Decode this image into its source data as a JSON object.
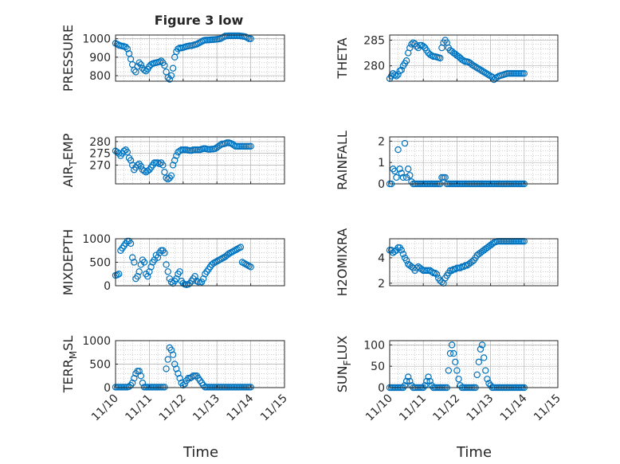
{
  "figure": {
    "title": "Figure 3 low",
    "bg": "#ffffff"
  },
  "style": {
    "marker": "#0072BD",
    "axis": "#262626",
    "grid": "#b0b0b0"
  },
  "xaxis": {
    "label": "Time",
    "ticks": [
      "11/10",
      "11/11",
      "11/12",
      "11/13",
      "11/14",
      "11/15"
    ],
    "range": [
      0,
      5
    ]
  },
  "chart_data": [
    {
      "type": "scatter",
      "title": "Figure 3 low",
      "ylabel": "PRESSURE",
      "ylim": [
        770,
        1020
      ],
      "yticks": [
        800,
        900,
        1000
      ],
      "grid": true,
      "x": [
        0.0,
        0.05,
        0.1,
        0.15,
        0.2,
        0.25,
        0.3,
        0.35,
        0.4,
        0.45,
        0.5,
        0.55,
        0.6,
        0.65,
        0.7,
        0.75,
        0.8,
        0.85,
        0.9,
        0.95,
        1.0,
        1.05,
        1.1,
        1.15,
        1.2,
        1.25,
        1.3,
        1.35,
        1.4,
        1.45,
        1.5,
        1.55,
        1.6,
        1.65,
        1.7,
        1.75,
        1.8,
        1.85,
        1.9,
        1.95,
        2.0,
        2.05,
        2.1,
        2.15,
        2.2,
        2.25,
        2.3,
        2.35,
        2.4,
        2.45,
        2.5,
        2.55,
        2.6,
        2.65,
        2.7,
        2.75,
        2.8,
        2.85,
        2.9,
        2.95,
        3.0,
        3.05,
        3.1,
        3.15,
        3.2,
        3.25,
        3.3,
        3.35,
        3.4,
        3.45,
        3.5,
        3.55,
        3.6,
        3.65,
        3.7,
        3.75,
        3.8,
        3.85,
        3.9,
        3.95,
        4.0
      ],
      "y": [
        975,
        970,
        965,
        962,
        960,
        958,
        955,
        945,
        920,
        890,
        860,
        830,
        820,
        850,
        870,
        860,
        840,
        830,
        825,
        835,
        850,
        860,
        865,
        868,
        870,
        872,
        875,
        880,
        870,
        855,
        820,
        790,
        780,
        800,
        840,
        900,
        930,
        945,
        950,
        950,
        952,
        955,
        958,
        960,
        962,
        962,
        965,
        968,
        970,
        975,
        980,
        985,
        990,
        992,
        993,
        993,
        994,
        995,
        995,
        996,
        997,
        998,
        1000,
        1005,
        1010,
        1015,
        1015,
        1016,
        1016,
        1016,
        1016,
        1016,
        1016,
        1016,
        1015,
        1014,
        1012,
        1010,
        1005,
        1000,
        1000
      ]
    },
    {
      "type": "scatter",
      "ylabel": "THETA",
      "ylim": [
        277,
        286
      ],
      "yticks": [
        280,
        285
      ],
      "grid": true,
      "x": [
        0.0,
        0.05,
        0.1,
        0.15,
        0.2,
        0.25,
        0.3,
        0.35,
        0.4,
        0.45,
        0.5,
        0.55,
        0.6,
        0.65,
        0.7,
        0.75,
        0.8,
        0.85,
        0.9,
        0.95,
        1.0,
        1.05,
        1.1,
        1.15,
        1.2,
        1.25,
        1.3,
        1.35,
        1.4,
        1.45,
        1.5,
        1.55,
        1.6,
        1.65,
        1.7,
        1.75,
        1.8,
        1.85,
        1.9,
        1.95,
        2.0,
        2.05,
        2.1,
        2.15,
        2.2,
        2.25,
        2.3,
        2.35,
        2.4,
        2.45,
        2.5,
        2.55,
        2.6,
        2.65,
        2.7,
        2.75,
        2.8,
        2.85,
        2.9,
        2.95,
        3.0,
        3.05,
        3.1,
        3.15,
        3.2,
        3.25,
        3.3,
        3.35,
        3.4,
        3.45,
        3.5,
        3.55,
        3.6,
        3.65,
        3.7,
        3.75,
        3.8,
        3.85,
        3.9,
        3.95,
        4.0
      ],
      "y": [
        277.5,
        278,
        278.5,
        278.2,
        278,
        278.3,
        279,
        279.2,
        280,
        280.5,
        281,
        282.5,
        283.5,
        284.2,
        284.5,
        284.3,
        283.8,
        283.5,
        284,
        284,
        283.8,
        283.5,
        283,
        282.5,
        282.2,
        282,
        281.8,
        281.8,
        281.7,
        281.6,
        281.5,
        283.5,
        284.5,
        285,
        284.5,
        283.5,
        283,
        282.8,
        282.5,
        282.3,
        282,
        281.8,
        281.5,
        281.2,
        281,
        280.8,
        280.8,
        280.7,
        280.5,
        280.2,
        280,
        279.8,
        279.6,
        279.4,
        279.2,
        279,
        278.8,
        278.6,
        278.4,
        278.2,
        278,
        277.8,
        277.3,
        277.6,
        277.8,
        278,
        278.1,
        278.2,
        278.3,
        278.4,
        278.5,
        278.5,
        278.5,
        278.5,
        278.5,
        278.5,
        278.5,
        278.5,
        278.5,
        278.5,
        278.5
      ]
    },
    {
      "type": "scatter",
      "ylabel": "AIR_TEMP",
      "ylim": [
        262,
        282
      ],
      "yticks": [
        270,
        275,
        280
      ],
      "grid": true,
      "x": [
        0.0,
        0.05,
        0.1,
        0.15,
        0.2,
        0.25,
        0.3,
        0.35,
        0.4,
        0.45,
        0.5,
        0.55,
        0.6,
        0.65,
        0.7,
        0.75,
        0.8,
        0.85,
        0.9,
        0.95,
        1.0,
        1.05,
        1.1,
        1.15,
        1.2,
        1.25,
        1.3,
        1.35,
        1.4,
        1.45,
        1.5,
        1.55,
        1.6,
        1.65,
        1.7,
        1.75,
        1.8,
        1.85,
        1.9,
        1.95,
        2.0,
        2.05,
        2.1,
        2.15,
        2.2,
        2.25,
        2.3,
        2.35,
        2.4,
        2.45,
        2.5,
        2.55,
        2.6,
        2.65,
        2.7,
        2.75,
        2.8,
        2.85,
        2.9,
        2.95,
        3.0,
        3.05,
        3.1,
        3.15,
        3.2,
        3.25,
        3.3,
        3.35,
        3.4,
        3.45,
        3.5,
        3.55,
        3.6,
        3.65,
        3.7,
        3.75,
        3.8,
        3.85,
        3.9,
        3.95,
        4.0
      ],
      "y": [
        276,
        275.5,
        275,
        274,
        275,
        276,
        276.5,
        275.5,
        273,
        272,
        270,
        268,
        269,
        270,
        270.5,
        269.5,
        268,
        267.5,
        267,
        267.5,
        268,
        269,
        270,
        271,
        271,
        271,
        270.5,
        271,
        270,
        267,
        264.5,
        264,
        264.5,
        265.5,
        270,
        272,
        274,
        275.5,
        276,
        276.5,
        276.5,
        276.5,
        276.5,
        276.3,
        276.2,
        276.2,
        276.5,
        276.5,
        276.5,
        276.5,
        276.5,
        276.8,
        277,
        277,
        276.8,
        276.7,
        276.7,
        276.8,
        276.8,
        277,
        277.5,
        278,
        278.5,
        279,
        279,
        279.2,
        279.5,
        279.5,
        279.3,
        279,
        278.5,
        278,
        278,
        278,
        278,
        278,
        278,
        278,
        278,
        278,
        278
      ]
    },
    {
      "type": "scatter",
      "ylabel": "RAINFALL",
      "ylim": [
        0,
        2.2
      ],
      "yticks": [
        0,
        1,
        2
      ],
      "grid": true,
      "x": [
        0.0,
        0.05,
        0.1,
        0.15,
        0.2,
        0.25,
        0.3,
        0.35,
        0.4,
        0.45,
        0.5,
        0.55,
        0.6,
        0.65,
        0.7,
        0.75,
        0.8,
        0.85,
        0.9,
        0.95,
        1.0,
        1.05,
        1.1,
        1.15,
        1.2,
        1.25,
        1.3,
        1.35,
        1.4,
        1.45,
        1.5,
        1.55,
        1.6,
        1.65,
        1.7,
        1.75,
        1.8,
        1.85,
        1.9,
        1.95,
        2.0,
        2.05,
        2.1,
        2.15,
        2.2,
        2.25,
        2.3,
        2.35,
        2.4,
        2.45,
        2.5,
        2.55,
        2.6,
        2.65,
        2.7,
        2.75,
        2.8,
        2.85,
        2.9,
        2.95,
        3.0,
        3.05,
        3.1,
        3.15,
        3.2,
        3.25,
        3.3,
        3.35,
        3.4,
        3.45,
        3.5,
        3.55,
        3.6,
        3.65,
        3.7,
        3.75,
        3.8,
        3.85,
        3.9,
        3.95,
        4.0
      ],
      "y": [
        0,
        0,
        0.7,
        0.6,
        0.3,
        1.6,
        0.7,
        0.5,
        0.3,
        1.9,
        0.3,
        0.7,
        0.4,
        0.1,
        0,
        0,
        0,
        0,
        0,
        0,
        0,
        0,
        0,
        0,
        0,
        0,
        0,
        0,
        0,
        0,
        0,
        0.3,
        0.3,
        0.3,
        0,
        0,
        0,
        0,
        0,
        0,
        0,
        0,
        0,
        0,
        0,
        0,
        0,
        0,
        0,
        0,
        0,
        0,
        0,
        0,
        0,
        0,
        0,
        0,
        0,
        0,
        0,
        0,
        0,
        0,
        0,
        0,
        0,
        0,
        0,
        0,
        0,
        0,
        0,
        0,
        0,
        0,
        0,
        0,
        0,
        0,
        0
      ]
    },
    {
      "type": "scatter",
      "ylabel": "MIXDEPTH",
      "ylim": [
        0,
        1000
      ],
      "yticks": [
        0,
        500,
        1000
      ],
      "grid": true,
      "x": [
        0.0,
        0.05,
        0.1,
        0.15,
        0.2,
        0.25,
        0.3,
        0.35,
        0.4,
        0.45,
        0.5,
        0.55,
        0.6,
        0.65,
        0.7,
        0.75,
        0.8,
        0.85,
        0.9,
        0.95,
        1.0,
        1.05,
        1.1,
        1.15,
        1.2,
        1.25,
        1.3,
        1.35,
        1.4,
        1.45,
        1.5,
        1.55,
        1.6,
        1.65,
        1.7,
        1.75,
        1.8,
        1.85,
        1.9,
        1.95,
        2.0,
        2.05,
        2.1,
        2.15,
        2.2,
        2.25,
        2.3,
        2.35,
        2.4,
        2.45,
        2.5,
        2.55,
        2.6,
        2.65,
        2.7,
        2.75,
        2.8,
        2.85,
        2.9,
        2.95,
        3.0,
        3.05,
        3.1,
        3.15,
        3.2,
        3.25,
        3.3,
        3.35,
        3.4,
        3.45,
        3.5,
        3.55,
        3.6,
        3.65,
        3.7,
        3.75,
        3.8,
        3.85,
        3.9,
        3.95,
        4.0
      ],
      "y": [
        220,
        230,
        250,
        750,
        800,
        850,
        900,
        950,
        950,
        900,
        600,
        500,
        150,
        200,
        300,
        450,
        550,
        500,
        250,
        200,
        300,
        400,
        500,
        550,
        650,
        600,
        700,
        750,
        750,
        700,
        450,
        300,
        150,
        80,
        50,
        100,
        150,
        250,
        300,
        100,
        50,
        30,
        20,
        30,
        50,
        100,
        150,
        200,
        100,
        80,
        60,
        80,
        150,
        250,
        300,
        350,
        400,
        450,
        480,
        500,
        520,
        540,
        560,
        580,
        600,
        620,
        650,
        680,
        700,
        720,
        740,
        760,
        780,
        800,
        820,
        500,
        480,
        460,
        440,
        420,
        400
      ]
    },
    {
      "type": "scatter",
      "ylabel": "H2OMIXRA",
      "ylim": [
        1.8,
        5.5
      ],
      "yticks": [
        2,
        4
      ],
      "grid": true,
      "x": [
        0.0,
        0.05,
        0.1,
        0.15,
        0.2,
        0.25,
        0.3,
        0.35,
        0.4,
        0.45,
        0.5,
        0.55,
        0.6,
        0.65,
        0.7,
        0.75,
        0.8,
        0.85,
        0.9,
        0.95,
        1.0,
        1.05,
        1.1,
        1.15,
        1.2,
        1.25,
        1.3,
        1.35,
        1.4,
        1.45,
        1.5,
        1.55,
        1.6,
        1.65,
        1.7,
        1.75,
        1.8,
        1.85,
        1.9,
        1.95,
        2.0,
        2.05,
        2.1,
        2.15,
        2.2,
        2.25,
        2.3,
        2.35,
        2.4,
        2.45,
        2.5,
        2.55,
        2.6,
        2.65,
        2.7,
        2.75,
        2.8,
        2.85,
        2.9,
        2.95,
        3.0,
        3.05,
        3.1,
        3.15,
        3.2,
        3.25,
        3.3,
        3.35,
        3.4,
        3.45,
        3.5,
        3.55,
        3.6,
        3.65,
        3.7,
        3.75,
        3.8,
        3.85,
        3.9,
        3.95,
        4.0
      ],
      "y": [
        4.6,
        4.6,
        4.4,
        4.5,
        4.6,
        4.8,
        4.8,
        4.6,
        4.3,
        4,
        3.8,
        3.5,
        3.4,
        3.3,
        3.2,
        3,
        3.2,
        3.3,
        3.2,
        3.1,
        3,
        3,
        3,
        3,
        3,
        2.9,
        2.8,
        2.8,
        2.7,
        2.4,
        2.2,
        2.1,
        2,
        2.4,
        2.6,
        2.8,
        3,
        3,
        3.1,
        3.1,
        3.2,
        3.2,
        3.2,
        3.3,
        3.3,
        3.4,
        3.4,
        3.5,
        3.6,
        3.7,
        3.8,
        4,
        4.2,
        4.3,
        4.4,
        4.5,
        4.6,
        4.7,
        4.8,
        4.9,
        5,
        5.1,
        5.2,
        5.25,
        5.3,
        5.3,
        5.3,
        5.3,
        5.3,
        5.3,
        5.3,
        5.3,
        5.3,
        5.3,
        5.3,
        5.3,
        5.3,
        5.3,
        5.3,
        5.3,
        5.3
      ]
    },
    {
      "type": "scatter",
      "ylabel": "TERR_MSL",
      "ylim": [
        0,
        1000
      ],
      "yticks": [
        0,
        500,
        1000
      ],
      "grid": true,
      "x": [
        0.0,
        0.05,
        0.1,
        0.15,
        0.2,
        0.25,
        0.3,
        0.35,
        0.4,
        0.45,
        0.5,
        0.55,
        0.6,
        0.65,
        0.7,
        0.75,
        0.8,
        0.85,
        0.9,
        0.95,
        1.0,
        1.05,
        1.1,
        1.15,
        1.2,
        1.25,
        1.3,
        1.35,
        1.4,
        1.45,
        1.5,
        1.55,
        1.6,
        1.65,
        1.7,
        1.75,
        1.8,
        1.85,
        1.9,
        1.95,
        2.0,
        2.05,
        2.1,
        2.15,
        2.2,
        2.25,
        2.3,
        2.35,
        2.4,
        2.45,
        2.5,
        2.55,
        2.6,
        2.65,
        2.7,
        2.75,
        2.8,
        2.85,
        2.9,
        2.95,
        3.0,
        3.05,
        3.1,
        3.15,
        3.2,
        3.25,
        3.3,
        3.35,
        3.4,
        3.45,
        3.5,
        3.55,
        3.6,
        3.65,
        3.7,
        3.75,
        3.8,
        3.85,
        3.9,
        3.95,
        4.0
      ],
      "y": [
        10,
        10,
        10,
        10,
        10,
        10,
        10,
        10,
        20,
        50,
        100,
        200,
        300,
        350,
        350,
        250,
        100,
        10,
        10,
        10,
        10,
        10,
        10,
        10,
        10,
        10,
        10,
        10,
        10,
        10,
        400,
        600,
        850,
        800,
        700,
        500,
        400,
        300,
        200,
        100,
        50,
        80,
        150,
        200,
        200,
        220,
        250,
        250,
        250,
        200,
        150,
        100,
        50,
        10,
        10,
        10,
        10,
        10,
        10,
        10,
        10,
        10,
        10,
        10,
        10,
        10,
        10,
        10,
        10,
        10,
        10,
        10,
        10,
        10,
        10,
        10,
        10,
        10,
        10,
        10,
        10
      ]
    },
    {
      "type": "scatter",
      "ylabel": "SUN_FLUX",
      "ylim": [
        0,
        110
      ],
      "yticks": [
        0,
        50,
        100
      ],
      "grid": true,
      "x": [
        0.0,
        0.05,
        0.1,
        0.15,
        0.2,
        0.25,
        0.3,
        0.35,
        0.4,
        0.45,
        0.5,
        0.55,
        0.6,
        0.65,
        0.7,
        0.75,
        0.8,
        0.85,
        0.9,
        0.95,
        1.0,
        1.05,
        1.1,
        1.15,
        1.2,
        1.25,
        1.3,
        1.35,
        1.4,
        1.45,
        1.5,
        1.55,
        1.6,
        1.65,
        1.7,
        1.75,
        1.8,
        1.85,
        1.9,
        1.95,
        2.0,
        2.05,
        2.1,
        2.15,
        2.2,
        2.25,
        2.3,
        2.35,
        2.4,
        2.45,
        2.5,
        2.55,
        2.6,
        2.65,
        2.7,
        2.75,
        2.8,
        2.85,
        2.9,
        2.95,
        3.0,
        3.05,
        3.1,
        3.15,
        3.2,
        3.25,
        3.3,
        3.35,
        3.4,
        3.45,
        3.5,
        3.55,
        3.6,
        3.65,
        3.7,
        3.75,
        3.8,
        3.85,
        3.9,
        3.95,
        4.0
      ],
      "y": [
        0,
        0,
        0,
        0,
        0,
        0,
        0,
        0,
        0,
        5,
        15,
        25,
        15,
        5,
        0,
        0,
        0,
        0,
        0,
        0,
        0,
        5,
        15,
        25,
        15,
        5,
        0,
        0,
        0,
        0,
        0,
        0,
        0,
        0,
        0,
        40,
        80,
        100,
        80,
        60,
        40,
        20,
        5,
        0,
        0,
        0,
        0,
        0,
        0,
        0,
        0,
        0,
        30,
        60,
        90,
        100,
        70,
        40,
        20,
        10,
        5,
        0,
        0,
        0,
        0,
        0,
        0,
        0,
        0,
        0,
        0,
        0,
        0,
        0,
        0,
        0,
        0,
        0,
        0,
        0,
        0
      ]
    }
  ]
}
